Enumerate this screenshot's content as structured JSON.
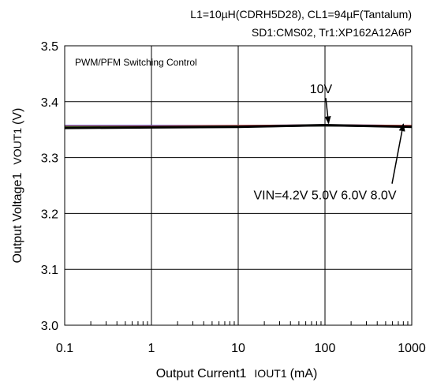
{
  "chart_data": {
    "type": "line",
    "header_lines": [
      "L1=10µH(CDRH5D28), CL1=94µF(Tantalum)",
      "SD1:CMS02, Tr1:XP162A12A6P"
    ],
    "inset_label": "PWM/PFM Switching Control",
    "xlabel_main": "Output Current1",
    "xlabel_symbol": "IOUT1",
    "xlabel_unit": "(mA)",
    "ylabel_main": "Output Voltage1",
    "ylabel_symbol": "VOUT1",
    "ylabel_unit": "(V)",
    "x_scale": "log",
    "xlim": [
      0.1,
      1000
    ],
    "ylim": [
      3.0,
      3.5
    ],
    "x_ticks": [
      {
        "value": 0.1,
        "label": "0.1"
      },
      {
        "value": 1,
        "label": "1"
      },
      {
        "value": 10,
        "label": "10"
      },
      {
        "value": 100,
        "label": "100"
      },
      {
        "value": 1000,
        "label": "1000"
      }
    ],
    "y_ticks": [
      {
        "value": 3.0,
        "label": "3.0"
      },
      {
        "value": 3.1,
        "label": "3.1"
      },
      {
        "value": 3.2,
        "label": "3.2"
      },
      {
        "value": 3.3,
        "label": "3.3"
      },
      {
        "value": 3.4,
        "label": "3.4"
      },
      {
        "value": 3.5,
        "label": "3.5"
      }
    ],
    "grid": true,
    "annotations": [
      {
        "text": "10V",
        "x": 90,
        "y": 3.415,
        "arrow_to": {
          "x": 110,
          "y": 3.361
        }
      },
      {
        "text": "VIN=4.2V 5.0V 6.0V 8.0V",
        "x": 100,
        "y": 3.225,
        "arrow_to": {
          "x": 800,
          "y": 3.36
        }
      }
    ],
    "series": [
      {
        "color": "#3a3ad8",
        "x": [
          0.1,
          1,
          10,
          100,
          1000
        ],
        "y": [
          3.357,
          3.357,
          3.357,
          3.358,
          3.357
        ]
      },
      {
        "color": "#d83a3a",
        "x": [
          0.1,
          1,
          10,
          100,
          1000
        ],
        "y": [
          3.356,
          3.356,
          3.357,
          3.358,
          3.357
        ]
      },
      {
        "color": "#3aa03a",
        "x": [
          0.1,
          1,
          10,
          100,
          1000
        ],
        "y": [
          3.355,
          3.355,
          3.356,
          3.357,
          3.356
        ]
      },
      {
        "color": "#404040",
        "x": [
          0.1,
          1,
          10,
          100,
          1000
        ],
        "y": [
          3.354,
          3.354,
          3.355,
          3.357,
          3.355
        ]
      },
      {
        "color": "#000000",
        "x": [
          0.1,
          1,
          10,
          100,
          1000
        ],
        "y": [
          3.353,
          3.354,
          3.355,
          3.358,
          3.355
        ]
      }
    ]
  }
}
